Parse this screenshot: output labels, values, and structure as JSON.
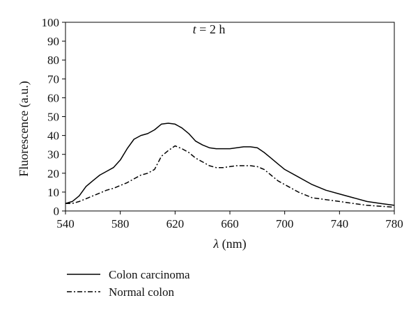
{
  "chart_data": {
    "type": "line",
    "annotation": {
      "var": "t",
      "rest": " = 2 h"
    },
    "xlabel": {
      "symbol": "λ",
      "unit": " (nm)"
    },
    "ylabel": "Fluorescence (a.u.)",
    "xlim": [
      540,
      780
    ],
    "ylim": [
      0,
      100
    ],
    "x_ticks": [
      540,
      580,
      620,
      660,
      700,
      740,
      780
    ],
    "y_ticks": [
      0,
      10,
      20,
      30,
      40,
      50,
      60,
      70,
      80,
      90,
      100
    ],
    "grid": false,
    "legend_position": "below",
    "series": [
      {
        "name": "Colon carcinoma",
        "style": "solid",
        "color": "#000000",
        "x": [
          540,
          545,
          550,
          555,
          560,
          565,
          570,
          575,
          580,
          585,
          590,
          595,
          600,
          605,
          610,
          615,
          620,
          625,
          630,
          635,
          640,
          645,
          650,
          655,
          660,
          665,
          670,
          675,
          680,
          685,
          690,
          695,
          700,
          710,
          720,
          730,
          740,
          750,
          760,
          770,
          780
        ],
        "y": [
          4,
          5,
          8,
          13,
          16,
          19,
          21,
          23,
          27,
          33,
          38,
          40,
          41,
          43,
          46,
          46.5,
          46,
          44,
          41,
          37,
          35,
          33.5,
          33,
          33,
          33,
          33.5,
          34,
          34,
          33.5,
          31,
          28,
          25,
          22,
          18,
          14,
          11,
          9,
          7,
          5,
          4,
          3
        ]
      },
      {
        "name": "Normal colon",
        "style": "dash-dot",
        "color": "#000000",
        "x": [
          540,
          545,
          550,
          555,
          560,
          565,
          570,
          575,
          580,
          585,
          590,
          595,
          600,
          605,
          610,
          615,
          620,
          625,
          630,
          635,
          640,
          645,
          650,
          655,
          660,
          665,
          670,
          675,
          680,
          685,
          690,
          695,
          700,
          710,
          720,
          730,
          740,
          750,
          760,
          770,
          780
        ],
        "y": [
          4,
          4,
          5,
          6.5,
          8,
          9.5,
          11,
          12,
          13.5,
          15,
          17,
          19,
          20,
          22,
          29,
          32,
          34.5,
          33,
          31,
          28,
          26,
          24,
          23,
          23,
          23.5,
          24,
          24,
          24,
          23.5,
          22,
          19,
          16,
          14,
          10,
          7,
          6,
          5,
          4,
          3,
          2.5,
          2
        ]
      }
    ]
  }
}
